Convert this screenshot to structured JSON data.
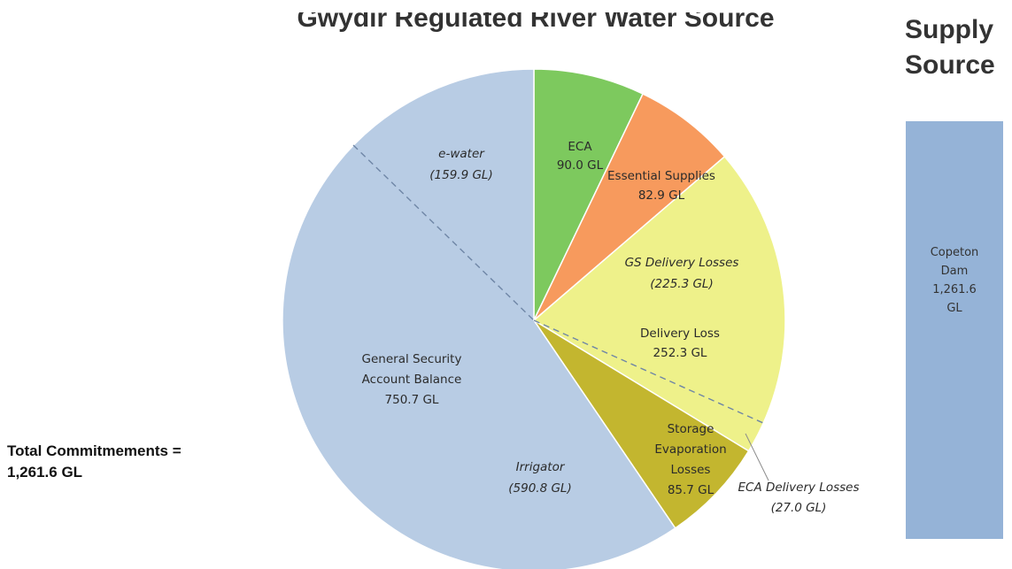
{
  "chart_data": {
    "type": "pie",
    "title": "Gwydir Regulated River Water Source",
    "slices": [
      {
        "label": "ECA",
        "value_text": "90.0 GL",
        "value": 90.0,
        "color": "#7dc95e"
      },
      {
        "label": "Essential Supplies",
        "value_text": "82.9 GL",
        "value": 82.9,
        "color": "#f79a5d"
      },
      {
        "label": "Delivery Loss",
        "value_text": "252.3 GL",
        "value": 252.3,
        "color": "#eef18a"
      },
      {
        "label": "Storage Evaporation Losses",
        "value_text": "85.7 GL",
        "value": 85.7,
        "color": "#c3b62f"
      },
      {
        "label": "General Security Account Balance",
        "value_text": "750.7 GL",
        "value": 750.7,
        "color": "#b8cce4"
      }
    ],
    "sub_annotations": [
      {
        "label": "e-water",
        "value_text": "(159.9 GL)",
        "value": 159.9
      },
      {
        "label": "Irrigator",
        "value_text": "(590.8 GL)",
        "value": 590.8
      },
      {
        "label": "GS Delivery Losses",
        "value_text": "(225.3 GL)",
        "value": 225.3
      },
      {
        "label": "ECA Delivery Losses",
        "value_text": "(27.0 GL)",
        "value": 27.0
      }
    ],
    "total_text": "Total Commitmements = 1,261.6 GL",
    "total_lines": [
      "Total Commitmements =",
      "1,261.6 GL"
    ],
    "side_title": [
      "Supply",
      "Source"
    ],
    "supply_bar": {
      "label_lines": [
        "Copeton",
        "Dam",
        "1,261.6",
        "GL"
      ],
      "value": 1261.6,
      "color": "#95b3d7"
    }
  }
}
